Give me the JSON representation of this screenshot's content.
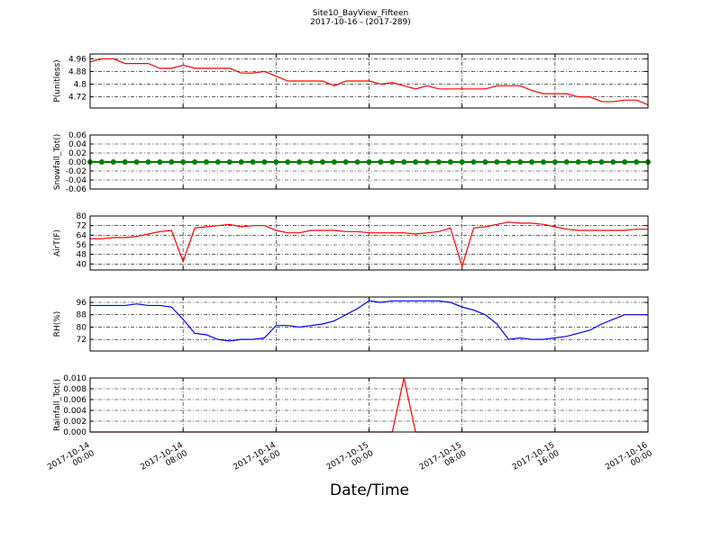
{
  "title": "Site10_BayView_Fifteen",
  "subtitle": "2017-10-16 - (2017-289)",
  "xlabel": "Date/Time",
  "x": [
    "2017-10-14 00:00",
    "2017-10-14 01:00",
    "2017-10-14 02:00",
    "2017-10-14 03:00",
    "2017-10-14 04:00",
    "2017-10-14 05:00",
    "2017-10-14 06:00",
    "2017-10-14 07:00",
    "2017-10-14 08:00",
    "2017-10-14 09:00",
    "2017-10-14 10:00",
    "2017-10-14 11:00",
    "2017-10-14 12:00",
    "2017-10-14 13:00",
    "2017-10-14 14:00",
    "2017-10-14 15:00",
    "2017-10-14 16:00",
    "2017-10-14 17:00",
    "2017-10-14 18:00",
    "2017-10-14 19:00",
    "2017-10-14 20:00",
    "2017-10-14 21:00",
    "2017-10-14 22:00",
    "2017-10-14 23:00",
    "2017-10-15 00:00",
    "2017-10-15 01:00",
    "2017-10-15 02:00",
    "2017-10-15 03:00",
    "2017-10-15 04:00",
    "2017-10-15 05:00",
    "2017-10-15 06:00",
    "2017-10-15 07:00",
    "2017-10-15 08:00",
    "2017-10-15 09:00",
    "2017-10-15 10:00",
    "2017-10-15 11:00",
    "2017-10-15 12:00",
    "2017-10-15 13:00",
    "2017-10-15 14:00",
    "2017-10-15 15:00",
    "2017-10-15 16:00",
    "2017-10-15 17:00",
    "2017-10-15 18:00",
    "2017-10-15 19:00",
    "2017-10-15 20:00",
    "2017-10-15 21:00",
    "2017-10-15 22:00",
    "2017-10-15 23:00",
    "2017-10-16 00:00"
  ],
  "xlim": [
    "2017-10-14 00:00",
    "2017-10-16 00:00"
  ],
  "xticks": [
    "2017-10-14 00:00",
    "2017-10-14 08:00",
    "2017-10-14 16:00",
    "2017-10-15 00:00",
    "2017-10-15 08:00",
    "2017-10-15 16:00",
    "2017-10-16 00:00"
  ],
  "grid": true,
  "chart_data": [
    {
      "type": "line",
      "ylabel": "P(unitless)",
      "ylim": [
        4.65,
        4.99
      ],
      "yticks": [
        4.72,
        4.8,
        4.88,
        4.96
      ],
      "series": [
        {
          "color": "#ff0000",
          "values": [
            4.94,
            4.96,
            4.96,
            4.93,
            4.93,
            4.93,
            4.9,
            4.9,
            4.92,
            4.9,
            4.9,
            4.9,
            4.9,
            4.87,
            4.87,
            4.88,
            4.85,
            4.82,
            4.82,
            4.82,
            4.82,
            4.79,
            4.82,
            4.82,
            4.82,
            4.8,
            4.81,
            4.79,
            4.77,
            4.79,
            4.77,
            4.77,
            4.77,
            4.77,
            4.77,
            4.79,
            4.79,
            4.79,
            4.76,
            4.74,
            4.74,
            4.74,
            4.72,
            4.72,
            4.69,
            4.69,
            4.7,
            4.7,
            4.67
          ]
        }
      ]
    },
    {
      "type": "line",
      "ylabel": "Snowfall_Tot()",
      "ylim": [
        -0.06,
        0.06
      ],
      "yticks": [
        -0.06,
        -0.04,
        -0.02,
        {
          "value": 0,
          "label": "0.00"
        },
        0.02,
        0.04,
        0.06
      ],
      "markers": true,
      "series": [
        {
          "color": "#008000",
          "values": [
            0,
            0,
            0,
            0,
            0,
            0,
            0,
            0,
            0,
            0,
            0,
            0,
            0,
            0,
            0,
            0,
            0,
            0,
            0,
            0,
            0,
            0,
            0,
            0,
            0,
            0,
            0,
            0,
            0,
            0,
            0,
            0,
            0,
            0,
            0,
            0,
            0,
            0,
            0,
            0,
            0,
            0,
            0,
            0,
            0,
            0,
            0,
            0,
            0
          ]
        }
      ]
    },
    {
      "type": "line",
      "ylabel": "AirT(F)",
      "ylim": [
        35,
        80
      ],
      "yticks": [
        40,
        48,
        56,
        64,
        72,
        80
      ],
      "series": [
        {
          "color": "#ff0000",
          "values": [
            61,
            61,
            62,
            62,
            63,
            65,
            67,
            68,
            42,
            70,
            71,
            72,
            73,
            71,
            72,
            72,
            68,
            66,
            66,
            68,
            68,
            68,
            67,
            67,
            66,
            66,
            66,
            66,
            65,
            66,
            67,
            70,
            38,
            70,
            71,
            73,
            75,
            74,
            74,
            73,
            71,
            69,
            68,
            68,
            68,
            68,
            68,
            69,
            69
          ]
        }
      ]
    },
    {
      "type": "line",
      "ylabel": "RH(%)",
      "ylim": [
        64.5,
        99.5
      ],
      "yticks": [
        72,
        80,
        88,
        96
      ],
      "series": [
        {
          "color": "#0000ff",
          "values": [
            94,
            94,
            94,
            94,
            95,
            94,
            94,
            93,
            85,
            76,
            75,
            72,
            71,
            72,
            72,
            73,
            81,
            81,
            80,
            81,
            82,
            84,
            88,
            92,
            97,
            96,
            97,
            97,
            97,
            97,
            97,
            96,
            93,
            91,
            88,
            82,
            72,
            73,
            72,
            72,
            73,
            74,
            76,
            78,
            82,
            85,
            88,
            88,
            88
          ]
        }
      ]
    },
    {
      "type": "line",
      "ylabel": "Rainfall_Tot()",
      "ylim": [
        0,
        0.01
      ],
      "yticks": [
        {
          "value": 0,
          "label": "0.000"
        },
        {
          "value": 0.002,
          "label": "0.002"
        },
        {
          "value": 0.004,
          "label": "0.004"
        },
        {
          "value": 0.006,
          "label": "0.006"
        },
        {
          "value": 0.008,
          "label": "0.008"
        },
        {
          "value": 0.01,
          "label": "0.010"
        }
      ],
      "series": [
        {
          "color": "#ff0000",
          "values": [
            0,
            0,
            0,
            0,
            0,
            0,
            0,
            0,
            0,
            0,
            0,
            0,
            0,
            0,
            0,
            0,
            0,
            0,
            0,
            0,
            0,
            0,
            0,
            0,
            0,
            0,
            0,
            0.01,
            0,
            0,
            0,
            0,
            0,
            0,
            0,
            0,
            0,
            0,
            0,
            0,
            0,
            0,
            0,
            0,
            0,
            0,
            0,
            0,
            0
          ]
        }
      ]
    }
  ]
}
